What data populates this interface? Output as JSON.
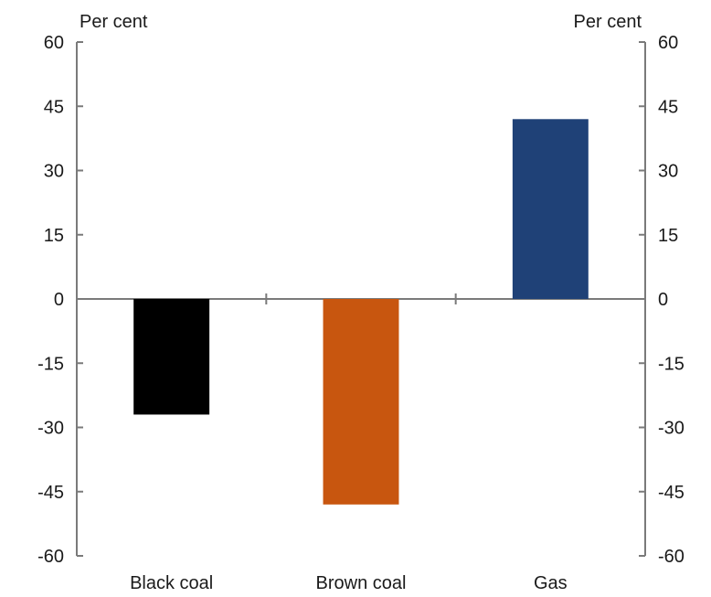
{
  "chart_data": {
    "type": "bar",
    "title": "",
    "xlabel": "",
    "ylabel_left": "Per cent",
    "ylabel_right": "Per cent",
    "ylim": [
      -60,
      60
    ],
    "yticks": [
      60,
      45,
      30,
      15,
      0,
      -15,
      -30,
      -45,
      -60
    ],
    "categories": [
      "Black coal",
      "Brown coal",
      "Gas"
    ],
    "values": [
      -27,
      -48,
      42
    ],
    "bar_colors": [
      "#000000",
      "#c8560f",
      "#1f4177"
    ],
    "grid": false,
    "legend": "none"
  }
}
